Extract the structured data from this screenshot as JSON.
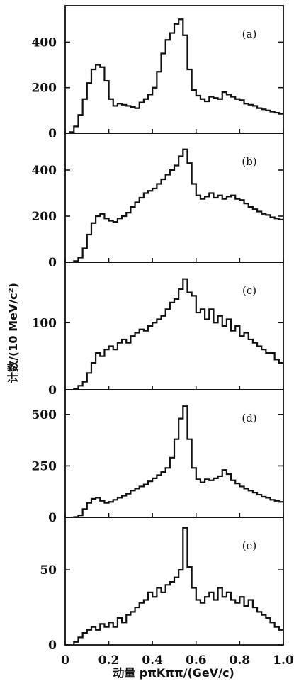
{
  "chart_data": [
    {
      "type": "line",
      "panel_label": "(a)",
      "xlim": [
        0,
        1.0
      ],
      "ylim": [
        0,
        560
      ],
      "yticks": [
        0,
        200,
        400
      ],
      "x": [
        0.03,
        0.05,
        0.07,
        0.09,
        0.11,
        0.13,
        0.15,
        0.17,
        0.19,
        0.21,
        0.23,
        0.25,
        0.27,
        0.29,
        0.31,
        0.33,
        0.35,
        0.37,
        0.39,
        0.41,
        0.43,
        0.45,
        0.47,
        0.49,
        0.51,
        0.53,
        0.55,
        0.57,
        0.59,
        0.61,
        0.63,
        0.65,
        0.67,
        0.69,
        0.71,
        0.73,
        0.75,
        0.77,
        0.79,
        0.81,
        0.83,
        0.85,
        0.87,
        0.89,
        0.91,
        0.93,
        0.95,
        0.97,
        0.99
      ],
      "values": [
        5,
        30,
        80,
        150,
        220,
        280,
        300,
        290,
        230,
        150,
        120,
        130,
        125,
        120,
        115,
        110,
        135,
        150,
        170,
        200,
        270,
        350,
        410,
        440,
        480,
        500,
        430,
        280,
        190,
        165,
        150,
        140,
        160,
        155,
        150,
        180,
        170,
        160,
        150,
        145,
        130,
        125,
        120,
        110,
        105,
        100,
        95,
        90,
        85
      ]
    },
    {
      "type": "line",
      "panel_label": "(b)",
      "xlim": [
        0,
        1.0
      ],
      "ylim": [
        0,
        560
      ],
      "yticks": [
        0,
        200,
        400
      ],
      "x": [
        0.05,
        0.07,
        0.09,
        0.11,
        0.13,
        0.15,
        0.17,
        0.19,
        0.21,
        0.23,
        0.25,
        0.27,
        0.29,
        0.31,
        0.33,
        0.35,
        0.37,
        0.39,
        0.41,
        0.43,
        0.45,
        0.47,
        0.49,
        0.51,
        0.53,
        0.55,
        0.57,
        0.59,
        0.61,
        0.63,
        0.65,
        0.67,
        0.69,
        0.71,
        0.73,
        0.75,
        0.77,
        0.79,
        0.81,
        0.83,
        0.85,
        0.87,
        0.89,
        0.91,
        0.93,
        0.95,
        0.97,
        0.99
      ],
      "values": [
        5,
        20,
        60,
        120,
        170,
        200,
        210,
        190,
        180,
        175,
        190,
        200,
        215,
        240,
        260,
        280,
        300,
        310,
        320,
        340,
        360,
        380,
        400,
        420,
        460,
        490,
        430,
        340,
        290,
        275,
        285,
        300,
        280,
        290,
        275,
        285,
        290,
        275,
        270,
        255,
        240,
        230,
        220,
        210,
        205,
        195,
        190,
        185
      ]
    },
    {
      "type": "line",
      "panel_label": "(c)",
      "xlim": [
        0,
        1.0
      ],
      "ylim": [
        0,
        190
      ],
      "yticks": [
        0,
        100
      ],
      "x": [
        0.05,
        0.07,
        0.09,
        0.11,
        0.13,
        0.15,
        0.17,
        0.19,
        0.21,
        0.23,
        0.25,
        0.27,
        0.29,
        0.31,
        0.33,
        0.35,
        0.37,
        0.39,
        0.41,
        0.43,
        0.45,
        0.47,
        0.49,
        0.51,
        0.53,
        0.55,
        0.57,
        0.59,
        0.61,
        0.63,
        0.65,
        0.67,
        0.69,
        0.71,
        0.73,
        0.75,
        0.77,
        0.79,
        0.81,
        0.83,
        0.85,
        0.87,
        0.89,
        0.91,
        0.93,
        0.95,
        0.97,
        0.99
      ],
      "values": [
        2,
        6,
        12,
        25,
        40,
        55,
        50,
        60,
        65,
        60,
        70,
        75,
        70,
        80,
        85,
        90,
        88,
        95,
        100,
        105,
        110,
        120,
        130,
        135,
        150,
        165,
        145,
        140,
        115,
        120,
        105,
        120,
        100,
        110,
        95,
        105,
        88,
        95,
        80,
        85,
        75,
        70,
        65,
        60,
        55,
        55,
        45,
        40
      ]
    },
    {
      "type": "line",
      "panel_label": "(d)",
      "xlim": [
        0,
        1.0
      ],
      "ylim": [
        0,
        620
      ],
      "yticks": [
        0,
        250,
        500
      ],
      "x": [
        0.05,
        0.07,
        0.09,
        0.11,
        0.13,
        0.15,
        0.17,
        0.19,
        0.21,
        0.23,
        0.25,
        0.27,
        0.29,
        0.31,
        0.33,
        0.35,
        0.37,
        0.39,
        0.41,
        0.43,
        0.45,
        0.47,
        0.49,
        0.51,
        0.53,
        0.55,
        0.57,
        0.59,
        0.61,
        0.63,
        0.65,
        0.67,
        0.69,
        0.71,
        0.73,
        0.75,
        0.77,
        0.79,
        0.81,
        0.83,
        0.85,
        0.87,
        0.89,
        0.91,
        0.93,
        0.95,
        0.97,
        0.99
      ],
      "values": [
        2,
        10,
        40,
        70,
        90,
        95,
        80,
        70,
        75,
        85,
        95,
        105,
        115,
        130,
        140,
        150,
        160,
        175,
        190,
        205,
        220,
        240,
        290,
        380,
        480,
        540,
        380,
        240,
        185,
        170,
        185,
        180,
        190,
        200,
        230,
        210,
        180,
        165,
        150,
        140,
        130,
        120,
        110,
        100,
        95,
        85,
        80,
        75
      ]
    },
    {
      "type": "line",
      "panel_label": "(e)",
      "xlim": [
        0,
        1.0
      ],
      "ylim": [
        0,
        85
      ],
      "yticks": [
        0,
        50
      ],
      "x": [
        0.05,
        0.07,
        0.09,
        0.11,
        0.13,
        0.15,
        0.17,
        0.19,
        0.21,
        0.23,
        0.25,
        0.27,
        0.29,
        0.31,
        0.33,
        0.35,
        0.37,
        0.39,
        0.41,
        0.43,
        0.45,
        0.47,
        0.49,
        0.51,
        0.53,
        0.55,
        0.57,
        0.59,
        0.61,
        0.63,
        0.65,
        0.67,
        0.69,
        0.71,
        0.73,
        0.75,
        0.77,
        0.79,
        0.81,
        0.83,
        0.85,
        0.87,
        0.89,
        0.91,
        0.93,
        0.95,
        0.97,
        0.99
      ],
      "values": [
        2,
        5,
        8,
        10,
        12,
        10,
        14,
        12,
        15,
        12,
        18,
        15,
        20,
        22,
        25,
        28,
        30,
        35,
        32,
        38,
        35,
        40,
        42,
        45,
        50,
        78,
        52,
        38,
        30,
        28,
        32,
        35,
        30,
        38,
        32,
        35,
        30,
        28,
        32,
        26,
        30,
        25,
        22,
        20,
        18,
        15,
        12,
        10
      ]
    }
  ],
  "xticks": [
    0,
    0.2,
    0.4,
    0.6,
    0.8,
    1.0
  ],
  "xtick_labels": [
    "0",
    "0.2",
    "0.4",
    "0.6",
    "0.8",
    "1.0"
  ],
  "xlabel": "动量 pπKππ/(GeV/c)",
  "ylabel": "计数/(10 MeV/c²)"
}
